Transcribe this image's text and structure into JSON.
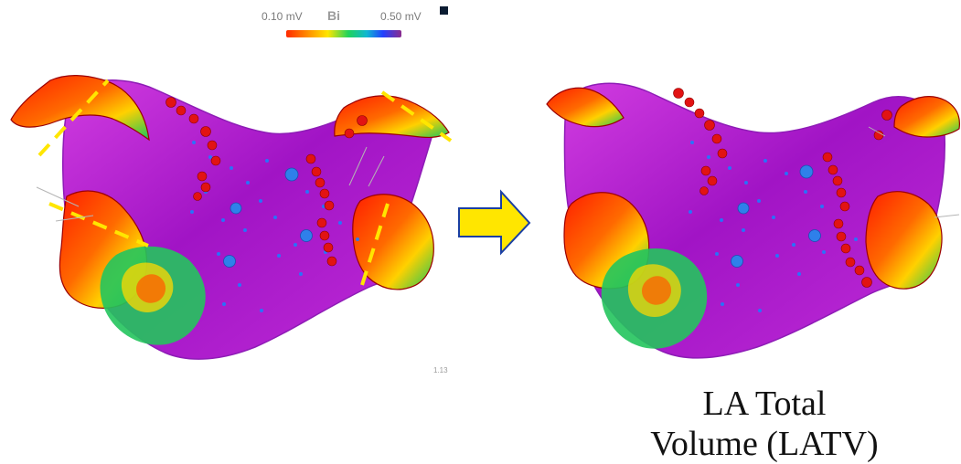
{
  "legend": {
    "min_label": "0.10 mV",
    "mode_label": "Bi",
    "max_label": "0.50 mV",
    "gradient_colors": [
      "#ff2a00",
      "#ff8a00",
      "#ffe600",
      "#1fd35b",
      "#0fb7d2",
      "#2240ff",
      "#8b2b8d"
    ],
    "toggle_icon": "legend-toggle-icon"
  },
  "map": {
    "scale_readout": "1.13"
  },
  "caption": {
    "line1": "LA Total",
    "line2": "Volume (LATV)"
  },
  "colors": {
    "background": "#ffffff",
    "tissue_primary": "#b21ad1",
    "tissue_high": "#ff2a00",
    "marker_red": "#e01010",
    "marker_blue": "#2d7fe8",
    "cut_line": "#ffe600",
    "arrow_fill": "#ffe600",
    "arrow_stroke": "#1a3fa3"
  },
  "icons": {
    "arrow": "right-arrow-icon",
    "cut_line": "dashed-cut-line-icon"
  }
}
